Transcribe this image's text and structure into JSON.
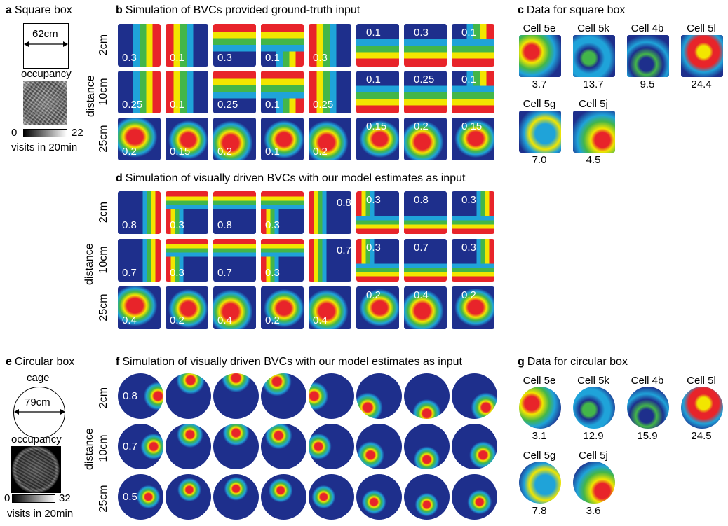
{
  "colors": {
    "blue": "#1e2f8c",
    "cyan": "#1fa3d9",
    "green": "#43b649",
    "yellow": "#f2e600",
    "red": "#e8242a"
  },
  "panel_a": {
    "letter": "a",
    "title": "Square box",
    "size_label": "62cm",
    "occupancy_label": "occupancy",
    "cbar_min": "0",
    "cbar_max": "22",
    "cbar_caption": "visits in 20min"
  },
  "panel_b": {
    "letter": "b",
    "title": "Simulation of BVCs provided ground-truth input",
    "distance_label": "distance",
    "rows": [
      {
        "label": "2cm",
        "values": [
          "0.3",
          "0.1",
          "0.3",
          "0.1",
          "0.3",
          "0.1",
          "0.3",
          "0.1"
        ],
        "wall": [
          "R",
          "L",
          "T",
          "TR",
          "L",
          "B",
          "B",
          "BR"
        ],
        "blob": false
      },
      {
        "label": "10cm",
        "values": [
          "0.25",
          "0.1",
          "0.25",
          "0.1",
          "0.25",
          "0.1",
          "0.25",
          "0.1"
        ],
        "wall": [
          "R",
          "L",
          "T",
          "TR",
          "L",
          "B",
          "B",
          "BR"
        ],
        "blob": false
      },
      {
        "label": "25cm",
        "values": [
          "0.2",
          "0.15",
          "0.2",
          "0.1",
          "0.2",
          "0.15",
          "0.2",
          "0.15"
        ],
        "wall": [
          "C",
          "C",
          "C",
          "C",
          "C",
          "C",
          "C",
          "C"
        ],
        "blob": true
      }
    ]
  },
  "panel_c": {
    "letter": "c",
    "title": "Data for square box",
    "cells": [
      {
        "name": "Cell 5e",
        "value": "3.7"
      },
      {
        "name": "Cell 5k",
        "value": "13.7"
      },
      {
        "name": "Cell 4b",
        "value": "9.5"
      },
      {
        "name": "Cell 5l",
        "value": "24.4"
      },
      {
        "name": "Cell 5g",
        "value": "7.0"
      },
      {
        "name": "Cell 5j",
        "value": "4.5"
      }
    ]
  },
  "panel_d": {
    "letter": "d",
    "title": "Simulation of visually driven BVCs with our model estimates as input",
    "distance_label": "distance",
    "rows": [
      {
        "label": "2cm",
        "values": [
          "0.8",
          "0.3",
          "0.8",
          "0.3",
          "0.8",
          "0.3",
          "0.8",
          "0.3"
        ],
        "wall": [
          "R",
          "TL",
          "T",
          "TL",
          "L",
          "BL",
          "B",
          "BR"
        ]
      },
      {
        "label": "10cm",
        "values": [
          "0.7",
          "0.3",
          "0.7",
          "0.3",
          "0.7",
          "0.3",
          "0.7",
          "0.3"
        ],
        "wall": [
          "R",
          "TL",
          "T",
          "TL",
          "L",
          "BL",
          "B",
          "BR"
        ]
      },
      {
        "label": "25cm",
        "values": [
          "0.4",
          "0.2",
          "0.4",
          "0.2",
          "0.4",
          "0.2",
          "0.4",
          "0.2"
        ],
        "wall": [
          "C",
          "C",
          "C",
          "C",
          "C",
          "C",
          "C",
          "C"
        ]
      }
    ]
  },
  "panel_e": {
    "letter": "e",
    "title": "Circular box",
    "cage_label": "cage",
    "size_label": "79cm",
    "occupancy_label": "occupancy",
    "cbar_min": "0",
    "cbar_max": "32",
    "cbar_caption": "visits in 20min"
  },
  "panel_f": {
    "letter": "f",
    "title": "Simulation of visually driven BVCs with our model estimates as input",
    "distance_label": "distance",
    "rows": [
      {
        "label": "2cm",
        "first_value": "0.8"
      },
      {
        "label": "10cm",
        "first_value": "0.7"
      },
      {
        "label": "25cm",
        "first_value": "0.5"
      }
    ]
  },
  "panel_g": {
    "letter": "g",
    "title": "Data for circular box",
    "cells": [
      {
        "name": "Cell 5e",
        "value": "3.1"
      },
      {
        "name": "Cell 5k",
        "value": "12.9"
      },
      {
        "name": "Cell 4b",
        "value": "15.9"
      },
      {
        "name": "Cell 5l",
        "value": "24.5"
      },
      {
        "name": "Cell 5g",
        "value": "7.8"
      },
      {
        "name": "Cell 5j",
        "value": "3.6"
      }
    ]
  }
}
